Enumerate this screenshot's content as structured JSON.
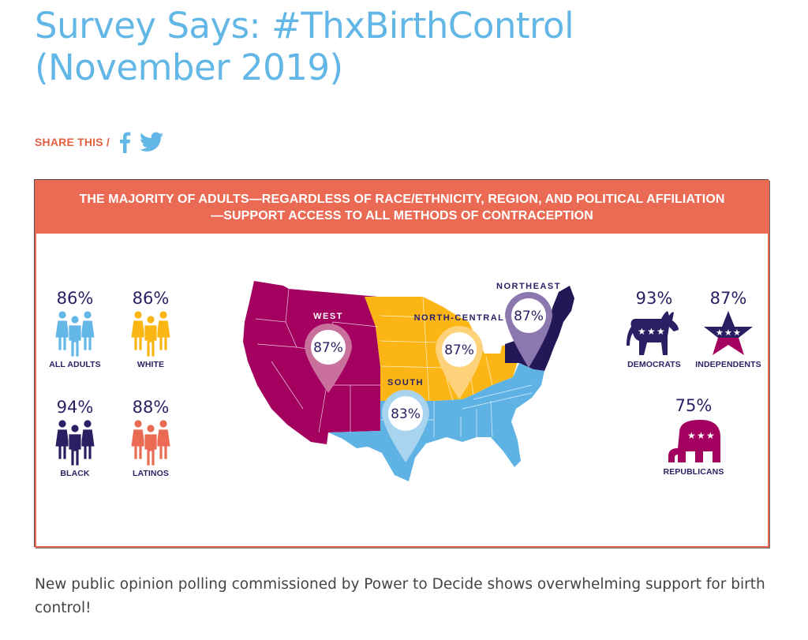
{
  "page": {
    "title": "Survey Says: #ThxBirthControl (November 2019)",
    "share_label": "SHARE THIS /",
    "share_icons": [
      "facebook-icon",
      "twitter-icon"
    ],
    "description": "New public opinion polling commissioned by Power to Decide shows overwhelming support for birth control!"
  },
  "colors": {
    "title_blue": "#63b7e6",
    "accent_coral": "#ea6a54",
    "navy": "#2a1f62",
    "magenta": "#a3005f",
    "gold": "#fbb616",
    "light_blue": "#5fb3e4",
    "dark_navy": "#221858"
  },
  "infographic": {
    "banner": "THE MAJORITY OF ADULTS—REGARDLESS OF RACE/ETHNICITY, REGION, AND POLITICAL AFFILIATION—SUPPORT ACCESS TO ALL METHODS OF CONTRACEPTION",
    "demographics": [
      {
        "label": "ALL ADULTS",
        "value": "86%",
        "icon": "people-group-icon",
        "color": "#63b7e6"
      },
      {
        "label": "WHITE",
        "value": "86%",
        "icon": "people-group-icon",
        "color": "#fbb616"
      },
      {
        "label": "BLACK",
        "value": "94%",
        "icon": "people-group-icon",
        "color": "#2a1f62"
      },
      {
        "label": "LATINOS",
        "value": "88%",
        "icon": "people-group-icon",
        "color": "#ea6a54"
      }
    ],
    "regions": [
      {
        "label": "WEST",
        "value": "87%",
        "color": "#a3005f"
      },
      {
        "label": "NORTH-CENTRAL",
        "value": "87%",
        "color": "#fbb616"
      },
      {
        "label": "NORTHEAST",
        "value": "87%",
        "color": "#221858"
      },
      {
        "label": "SOUTH",
        "value": "83%",
        "color": "#5fb3e4"
      }
    ],
    "political": [
      {
        "label": "DEMOCRATS",
        "value": "93%",
        "icon": "donkey-icon"
      },
      {
        "label": "INDEPENDENTS",
        "value": "87%",
        "icon": "star-icon"
      },
      {
        "label": "REPUBLICANS",
        "value": "75%",
        "icon": "elephant-icon"
      }
    ]
  }
}
